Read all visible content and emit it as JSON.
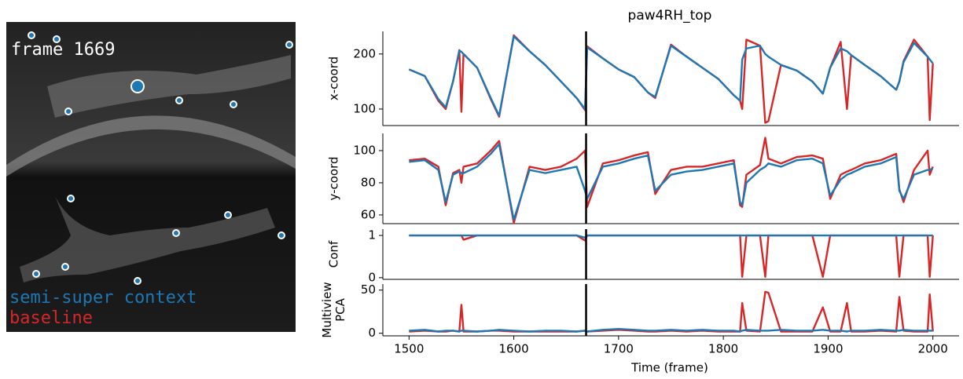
{
  "image": {
    "frame_label": "frame 1669"
  },
  "chart_data": {
    "type": "line",
    "title": "paw4RH_top",
    "xlabel": "Time (frame)",
    "xlim": [
      1475,
      2025
    ],
    "xticks": [
      1500,
      1600,
      1700,
      1800,
      1900,
      2000
    ],
    "cursor": 1669,
    "legend": [
      {
        "name": "semi-super context",
        "color": "#1f77b4"
      },
      {
        "name": "baseline",
        "color": "#d62728"
      }
    ],
    "x": [
      1500,
      1515,
      1528,
      1535,
      1542,
      1548,
      1550,
      1552,
      1565,
      1578,
      1586,
      1600,
      1615,
      1630,
      1645,
      1660,
      1668,
      1670,
      1685,
      1700,
      1715,
      1728,
      1735,
      1750,
      1765,
      1780,
      1795,
      1810,
      1816,
      1818,
      1822,
      1835,
      1840,
      1843,
      1855,
      1870,
      1885,
      1895,
      1902,
      1912,
      1918,
      1922,
      1935,
      1950,
      1965,
      1968,
      1972,
      1982,
      1995,
      1997,
      2000
    ],
    "panels": [
      {
        "ylabel": [
          "x-coord"
        ],
        "ylim": [
          70,
          241
        ],
        "yticks": [
          100,
          200
        ],
        "series": [
          {
            "values": [
              172,
              160,
              118,
              103,
              150,
              206,
              204,
              200,
              175,
              120,
              88,
              232,
              205,
              180,
              150,
              120,
              100,
              212,
              192,
              172,
              158,
              130,
              122,
              215,
              195,
              175,
              155,
              125,
              115,
              190,
              210,
              215,
              200,
              195,
              180,
              170,
              150,
              128,
              175,
              210,
              205,
              198,
              180,
              160,
              135,
              150,
              185,
              220,
              195,
              190,
              183
            ]
          },
          {
            "values": [
              172,
              160,
              115,
              100,
              150,
              207,
              95,
              200,
              175,
              118,
              86,
              234,
              205,
              180,
              150,
              120,
              98,
              214,
              192,
              172,
              158,
              130,
              120,
              217,
              195,
              175,
              155,
              125,
              115,
              100,
              226,
              215,
              75,
              78,
              180,
              170,
              150,
              128,
              175,
              222,
              100,
              198,
              180,
              160,
              135,
              150,
              187,
              226,
              195,
              80,
              183
            ]
          }
        ]
      },
      {
        "ylabel": [
          "y-coord"
        ],
        "ylim": [
          54.6,
          110.7
        ],
        "yticks": [
          60,
          80,
          100
        ],
        "series": [
          {
            "values": [
              93,
              94,
              88,
              68,
              85,
              87,
              86,
              86,
              90,
              98,
              104,
              57,
              88,
              86,
              88,
              90,
              75,
              70,
              90,
              92,
              95,
              97,
              75,
              85,
              87,
              88,
              90,
              92,
              68,
              66,
              80,
              88,
              90,
              92,
              90,
              94,
              95,
              92,
              72,
              82,
              85,
              86,
              90,
              92,
              96,
              75,
              70,
              85,
              88,
              88,
              89
            ]
          },
          {
            "values": [
              94,
              95,
              90,
              66,
              86,
              88,
              80,
              90,
              92,
              100,
              106,
              55,
              90,
              88,
              90,
              95,
              100,
              65,
              92,
              94,
              97,
              99,
              73,
              88,
              90,
              90,
              92,
              94,
              66,
              65,
              85,
              91,
              108,
              95,
              92,
              96,
              97,
              95,
              70,
              85,
              87,
              88,
              92,
              94,
              98,
              76,
              68,
              88,
              100,
              85,
              90
            ]
          }
        ]
      },
      {
        "ylabel": [
          "Conf"
        ],
        "ylim": [
          -0.04,
          1.15
        ],
        "yticks": [
          0,
          1
        ],
        "series": [
          {
            "values": [
              1,
              1,
              1,
              1,
              1,
              1,
              1,
              1,
              1,
              1,
              1,
              1,
              1,
              1,
              1,
              1,
              0.95,
              1,
              1,
              1,
              1,
              1,
              1,
              1,
              1,
              1,
              1,
              1,
              1,
              1,
              1,
              1,
              1,
              1,
              1,
              1,
              1,
              1,
              1,
              1,
              1,
              1,
              1,
              1,
              1,
              1,
              1,
              1,
              1,
              1,
              1
            ]
          },
          {
            "values": [
              1,
              1,
              1,
              1,
              1,
              1,
              1,
              0.9,
              1,
              1,
              1,
              1,
              1,
              1,
              1,
              1,
              0.88,
              1,
              1,
              1,
              1,
              1,
              1,
              1,
              1,
              1,
              1,
              1,
              1,
              0.02,
              1,
              1,
              0.02,
              1,
              1,
              1,
              1,
              0.02,
              1,
              1,
              1,
              1,
              1,
              1,
              1,
              0.02,
              1,
              1,
              1,
              0.02,
              1
            ]
          }
        ]
      },
      {
        "ylabel": [
          "Multiview",
          "PCA"
        ],
        "ylim": [
          -3,
          57
        ],
        "yticks": [
          0,
          50
        ],
        "series": [
          {
            "values": [
              3,
              4,
              2,
              3,
              3,
              2,
              3,
              3,
              2,
              3,
              4,
              3,
              2,
              3,
              3,
              2,
              3,
              2,
              4,
              5,
              4,
              3,
              3,
              4,
              3,
              4,
              3,
              3,
              2,
              3,
              4,
              3,
              3,
              3,
              4,
              3,
              3,
              4,
              3,
              3,
              2,
              3,
              3,
              4,
              3,
              3,
              4,
              3,
              3,
              3,
              3
            ]
          },
          {
            "values": [
              2,
              3,
              2,
              2,
              3,
              2,
              33,
              2,
              2,
              3,
              3,
              2,
              2,
              2,
              2,
              2,
              3,
              2,
              3,
              4,
              3,
              2,
              2,
              3,
              2,
              3,
              2,
              2,
              2,
              35,
              3,
              2,
              48,
              47,
              2,
              2,
              2,
              30,
              2,
              2,
              35,
              2,
              2,
              3,
              2,
              42,
              3,
              2,
              2,
              45,
              2
            ]
          }
        ]
      }
    ]
  }
}
